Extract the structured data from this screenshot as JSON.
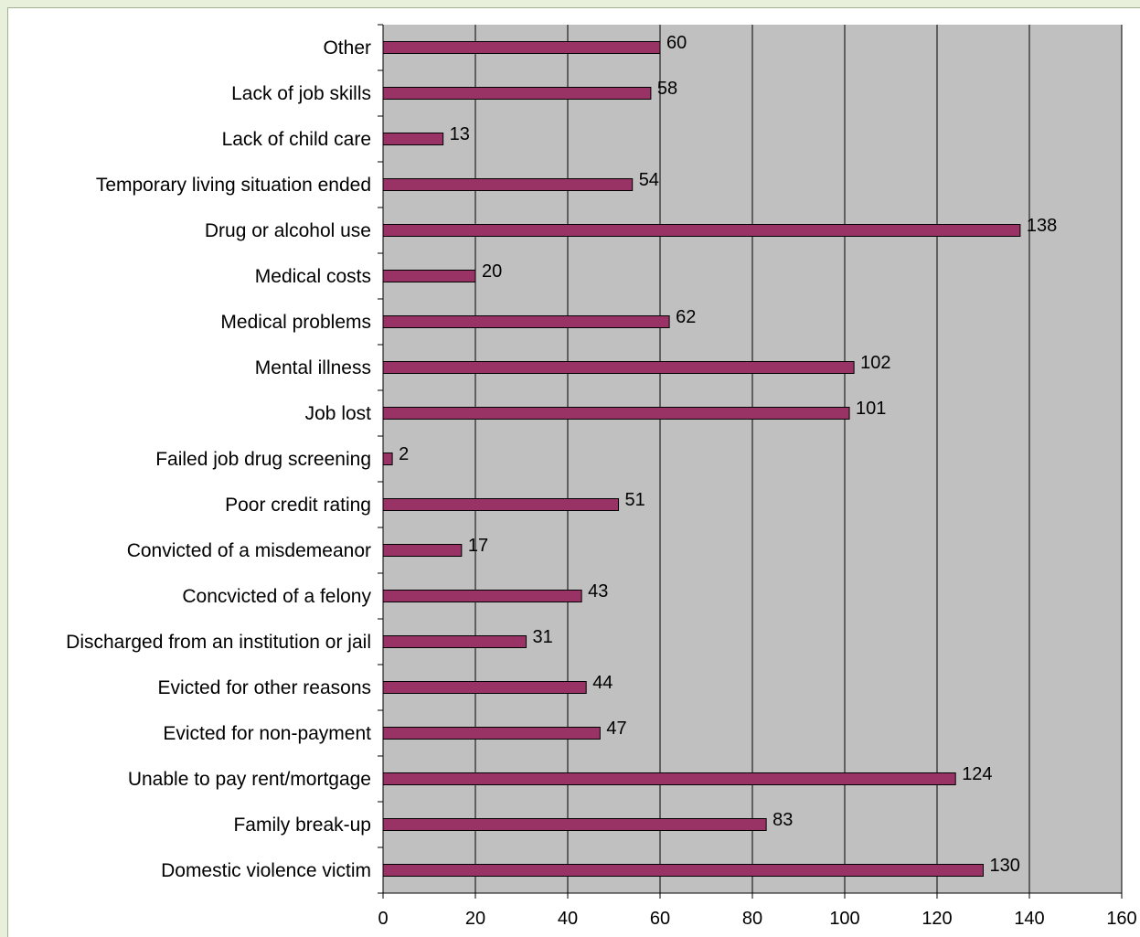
{
  "chart_data": {
    "type": "bar",
    "orientation": "horizontal",
    "categories": [
      "Other",
      "Lack of job skills",
      "Lack of child care",
      "Temporary living situation ended",
      "Drug or alcohol use",
      "Medical costs",
      "Medical problems",
      "Mental illness",
      "Job lost",
      "Failed job drug screening",
      "Poor credit rating",
      "Convicted of a misdemeanor",
      "Concvicted of a felony",
      "Discharged from an institution or jail",
      "Evicted for other reasons",
      "Evicted for non-payment",
      "Unable to pay rent/mortgage",
      "Family break-up",
      "Domestic violence victim"
    ],
    "values": [
      60,
      58,
      13,
      54,
      138,
      20,
      62,
      102,
      101,
      2,
      51,
      17,
      43,
      31,
      44,
      47,
      124,
      83,
      130
    ],
    "xlim": [
      0,
      160
    ],
    "xticks": [
      0,
      20,
      40,
      60,
      80,
      100,
      120,
      140,
      160
    ],
    "title": "",
    "xlabel": "",
    "ylabel": "",
    "grid": "vertical",
    "legend": "none",
    "data_labels": true,
    "colors": {
      "bar": "#993366",
      "plot_background": "#c0c0c0",
      "gridline": "#000000"
    }
  }
}
